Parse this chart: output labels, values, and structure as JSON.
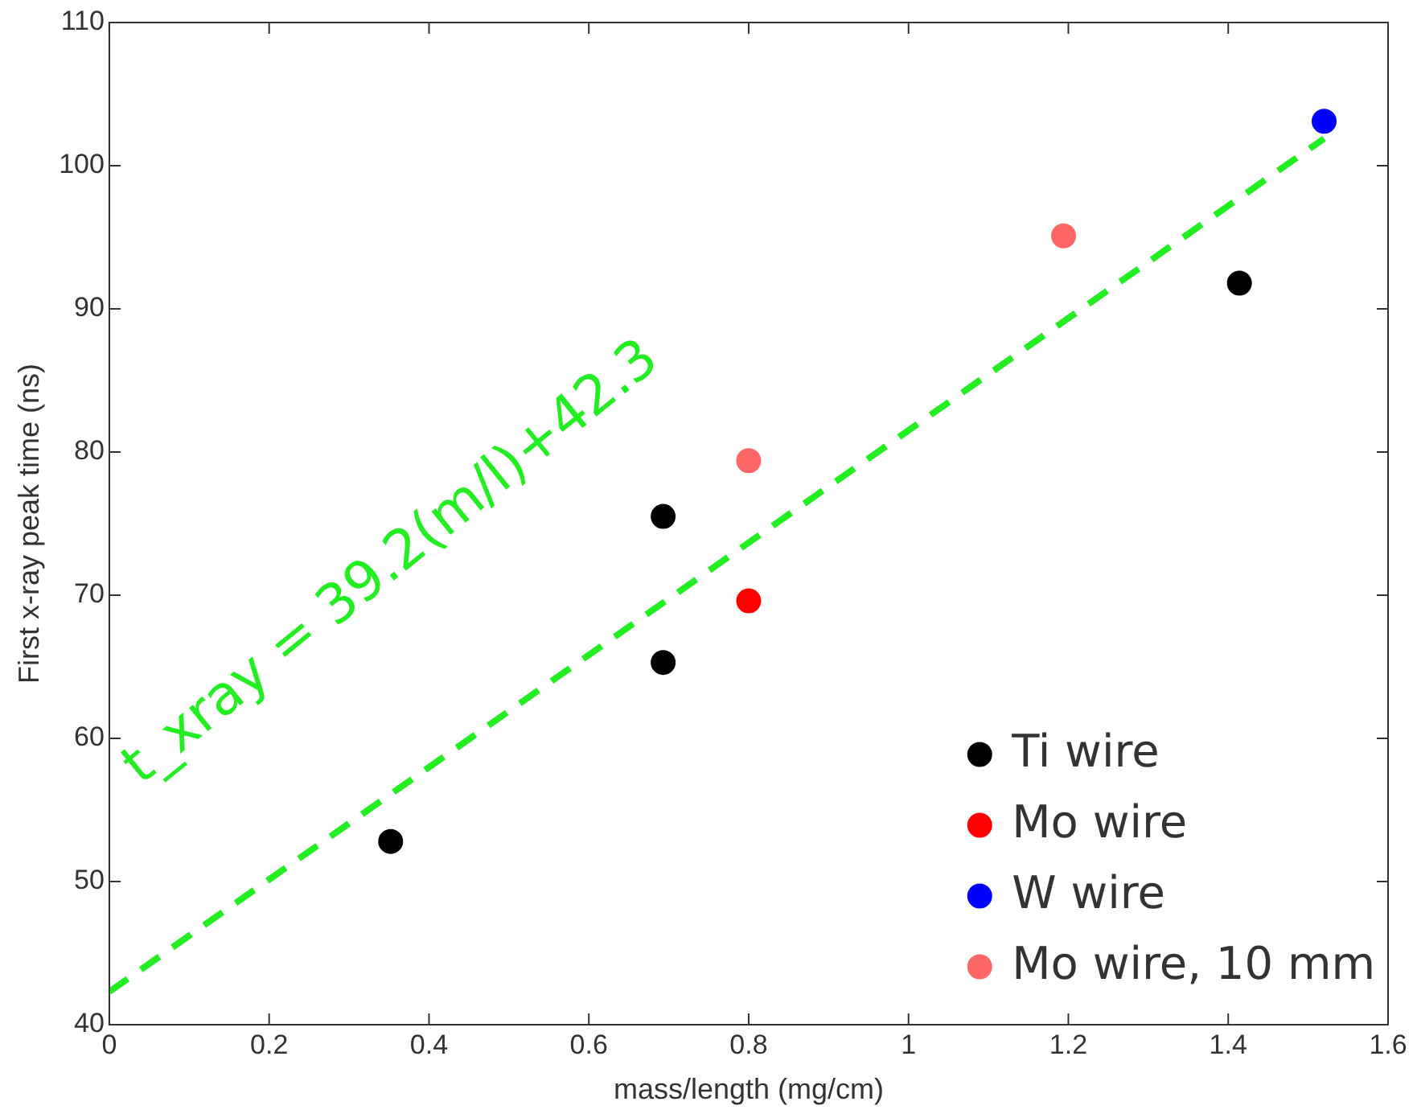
{
  "chart_data": {
    "type": "scatter",
    "xlabel": "mass/length (mg/cm)",
    "ylabel": "First x-ray peak time (ns)",
    "xlim": [
      0,
      1.6
    ],
    "xticks": [
      0,
      0.2,
      0.4,
      0.6,
      0.8,
      1,
      1.2,
      1.4,
      1.6
    ],
    "ylim": [
      40,
      110
    ],
    "yticks": [
      40,
      50,
      60,
      70,
      80,
      90,
      100,
      110
    ],
    "grid": false,
    "legend": "bottom right",
    "marker": "circle",
    "annotations": [
      "t_xray = 39.2(m/l)+42.3"
    ],
    "series": [
      {
        "name": "Ti wire",
        "color": "#000000",
        "x": [
          0.352,
          0.693,
          0.693,
          1.414
        ],
        "values": [
          52.8,
          75.5,
          65.3,
          91.8
        ]
      },
      {
        "name": "Mo wire",
        "color": "#ff0000",
        "x": [
          0.8
        ],
        "values": [
          69.6
        ]
      },
      {
        "name": "W wire",
        "color": "#0000ff",
        "x": [
          1.52
        ],
        "values": [
          103.1
        ]
      },
      {
        "name": "Mo wire, 10 mm",
        "color": "#ff6666",
        "x": [
          0.8,
          1.194
        ],
        "values": [
          79.4,
          95.1
        ]
      },
      {
        "type": "line",
        "color": "#22ee22",
        "line_style": "dashed",
        "marker": "none",
        "x": [
          0,
          1.52
        ],
        "values": [
          42.3,
          101.9
        ]
      }
    ]
  }
}
